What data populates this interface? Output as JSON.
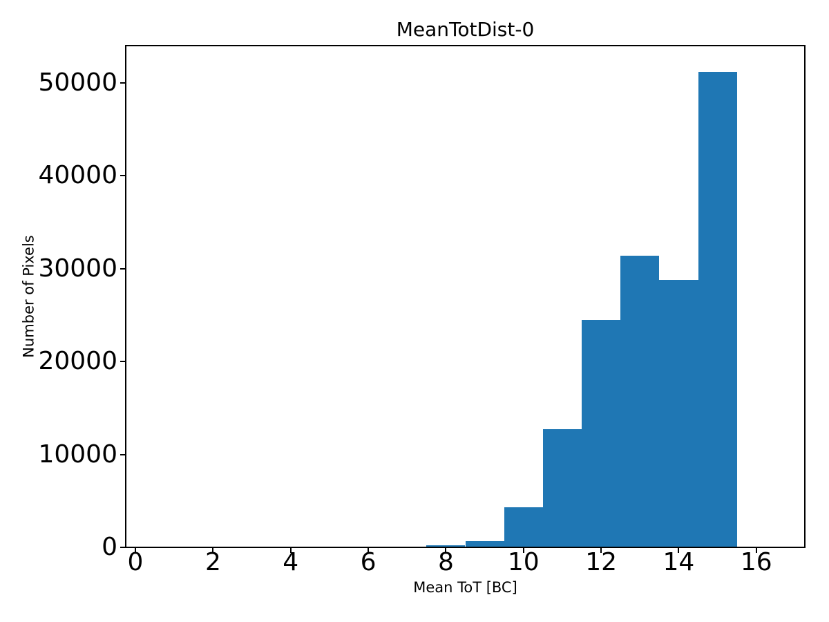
{
  "chart_data": {
    "type": "histogram",
    "title": "MeanTotDist-0",
    "xlabel": "Mean ToT [BC]",
    "ylabel": "Number of Pixels",
    "bar_color": "#1f77b4",
    "axis_color": "#000000",
    "background_color": "#ffffff",
    "grid": false,
    "legend": null,
    "xlim": [
      -0.25,
      17.25
    ],
    "ylim": [
      0,
      54000
    ],
    "xticks": [
      0,
      2,
      4,
      6,
      8,
      10,
      12,
      14,
      16
    ],
    "yticks": [
      0,
      10000,
      20000,
      30000,
      40000,
      50000
    ],
    "bins": [
      {
        "x_start": 7.5,
        "x_end": 8.5,
        "count": 200
      },
      {
        "x_start": 8.5,
        "x_end": 9.5,
        "count": 700
      },
      {
        "x_start": 9.5,
        "x_end": 10.5,
        "count": 4300
      },
      {
        "x_start": 10.5,
        "x_end": 11.5,
        "count": 12700
      },
      {
        "x_start": 11.5,
        "x_end": 12.5,
        "count": 24500
      },
      {
        "x_start": 12.5,
        "x_end": 13.5,
        "count": 31400
      },
      {
        "x_start": 13.5,
        "x_end": 14.5,
        "count": 28800
      },
      {
        "x_start": 14.5,
        "x_end": 15.5,
        "count": 51200
      }
    ]
  }
}
